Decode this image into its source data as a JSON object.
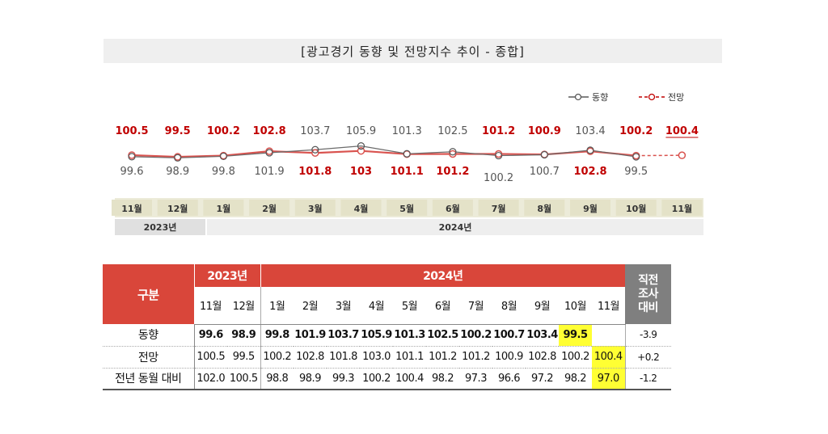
{
  "figure_title": "[광고경기 동향 및 전망지수 추이 - 종합]",
  "chart_data": {
    "type": "line",
    "categories": [
      "11월",
      "12월",
      "1월",
      "2월",
      "3월",
      "4월",
      "5월",
      "6월",
      "7월",
      "8월",
      "9월",
      "10월",
      "11월"
    ],
    "year_groups": [
      {
        "label": "2023년",
        "span": 2
      },
      {
        "label": "2024년",
        "span": 11
      }
    ],
    "series": [
      {
        "name": "동향",
        "color": "#595959",
        "values": [
          99.6,
          98.9,
          99.8,
          101.9,
          103.7,
          105.9,
          101.3,
          102.5,
          100.2,
          100.7,
          103.4,
          99.5,
          null
        ]
      },
      {
        "name": "전망",
        "color": "#c00000",
        "values": [
          100.5,
          99.5,
          100.2,
          102.8,
          101.8,
          103.0,
          101.1,
          101.2,
          101.2,
          100.9,
          102.8,
          100.2,
          100.4
        ]
      }
    ],
    "legend_position": "top-right",
    "ylim": [
      96,
      110
    ]
  },
  "table": {
    "header_label": "구분",
    "year_2023": "2023년",
    "year_2024": "2024년",
    "months": [
      "11월",
      "12월",
      "1월",
      "2월",
      "3월",
      "4월",
      "5월",
      "6월",
      "7월",
      "8월",
      "9월",
      "10월",
      "11월"
    ],
    "diff_header": [
      "직전",
      "조사",
      "대비"
    ],
    "rows": [
      {
        "label": "동향",
        "values": [
          "99.6",
          "98.9",
          "99.8",
          "101.9",
          "103.7",
          "105.9",
          "101.3",
          "102.5",
          "100.2",
          "100.7",
          "103.4",
          "99.5",
          ""
        ],
        "diff": "-3.9"
      },
      {
        "label": "전망",
        "values": [
          "100.5",
          "99.5",
          "100.2",
          "102.8",
          "101.8",
          "103.0",
          "101.1",
          "101.2",
          "101.2",
          "100.9",
          "102.8",
          "100.2",
          "100.4"
        ],
        "diff": "+0.2"
      },
      {
        "label": "전년 동월 대비",
        "values": [
          "102.0",
          "100.5",
          "98.8",
          "98.9",
          "99.3",
          "100.2",
          "100.4",
          "98.2",
          "97.3",
          "96.6",
          "97.2",
          "98.2",
          "97.0"
        ],
        "diff": "-1.2"
      }
    ],
    "highlight_color": "#ffff33"
  }
}
